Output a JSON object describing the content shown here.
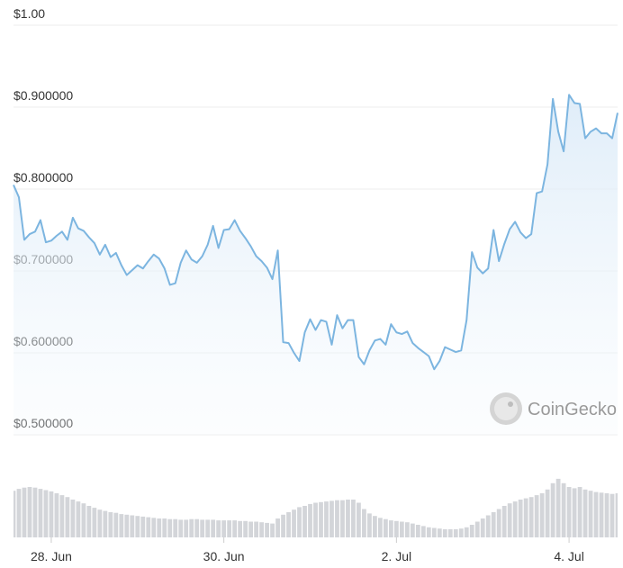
{
  "chart_data": {
    "type": "line",
    "watermark": "CoinGecko",
    "color": "#7cb5e0",
    "volume_color": "#d3d5d9",
    "grid": true,
    "ylim": [
      0.5,
      1.0
    ],
    "yticks": [
      {
        "value": 0.5,
        "label": "$0.500000"
      },
      {
        "value": 0.6,
        "label": "$0.600000"
      },
      {
        "value": 0.7,
        "label": "$0.700000"
      },
      {
        "value": 0.8,
        "label": "$0.800000"
      },
      {
        "value": 0.9,
        "label": "$0.900000"
      },
      {
        "value": 1.0,
        "label": "$1.00"
      }
    ],
    "categories": [
      null,
      null,
      null,
      null,
      null,
      null,
      null,
      "28. Jun",
      null,
      null,
      null,
      null,
      null,
      null,
      null,
      null,
      null,
      null,
      null,
      null,
      null,
      null,
      null,
      null,
      null,
      null,
      null,
      null,
      null,
      null,
      null,
      null,
      null,
      null,
      null,
      null,
      null,
      null,
      null,
      "30. Jun",
      null,
      null,
      null,
      null,
      null,
      null,
      null,
      null,
      null,
      null,
      null,
      null,
      null,
      null,
      null,
      null,
      null,
      null,
      null,
      null,
      null,
      null,
      null,
      null,
      null,
      null,
      null,
      null,
      null,
      null,
      null,
      "2. Jul",
      null,
      null,
      null,
      null,
      null,
      null,
      null,
      null,
      null,
      null,
      null,
      null,
      null,
      null,
      null,
      null,
      null,
      null,
      null,
      null,
      null,
      null,
      null,
      null,
      null,
      null,
      null,
      null,
      null,
      null,
      null,
      "4. Jul",
      null,
      null,
      null,
      null,
      null,
      null,
      null,
      null,
      null
    ],
    "values": [
      0.805,
      0.79,
      0.738,
      0.745,
      0.748,
      0.762,
      0.735,
      0.737,
      0.743,
      0.748,
      0.738,
      0.765,
      0.752,
      0.749,
      0.741,
      0.734,
      0.72,
      0.732,
      0.717,
      0.722,
      0.707,
      0.695,
      0.701,
      0.707,
      0.703,
      0.712,
      0.72,
      0.715,
      0.703,
      0.683,
      0.685,
      0.71,
      0.725,
      0.714,
      0.71,
      0.718,
      0.732,
      0.755,
      0.728,
      0.75,
      0.751,
      0.762,
      0.749,
      0.74,
      0.73,
      0.718,
      0.712,
      0.704,
      0.69,
      0.725,
      0.613,
      0.612,
      0.6,
      0.59,
      0.625,
      0.641,
      0.628,
      0.64,
      0.638,
      0.61,
      0.646,
      0.63,
      0.64,
      0.64,
      0.595,
      0.586,
      0.603,
      0.615,
      0.617,
      0.61,
      0.635,
      0.625,
      0.623,
      0.626,
      0.612,
      0.606,
      0.601,
      0.596,
      0.58,
      0.59,
      0.607,
      0.604,
      0.601,
      0.603,
      0.64,
      0.723,
      0.704,
      0.697,
      0.703,
      0.75,
      0.712,
      0.733,
      0.751,
      0.76,
      0.747,
      0.74,
      0.745,
      0.795,
      0.797,
      0.83,
      0.91,
      0.87,
      0.846,
      0.915,
      0.905,
      0.904,
      0.862,
      0.87,
      0.874,
      0.868,
      0.868,
      0.862,
      0.893
    ],
    "y2lim": [
      0,
      100
    ],
    "volume_values": [
      74,
      77,
      79,
      80,
      79,
      77,
      75,
      73,
      70,
      67,
      64,
      60,
      57,
      54,
      50,
      47,
      44,
      42,
      40,
      39,
      37,
      36,
      35,
      34,
      33,
      32,
      31,
      30,
      30,
      29,
      29,
      28,
      28,
      29,
      29,
      28,
      28,
      28,
      27,
      27,
      27,
      27,
      26,
      26,
      25,
      25,
      24,
      23,
      22,
      30,
      36,
      40,
      44,
      48,
      50,
      53,
      55,
      56,
      57,
      58,
      59,
      59,
      60,
      60,
      55,
      45,
      38,
      34,
      31,
      29,
      27,
      26,
      25,
      24,
      22,
      20,
      18,
      16,
      15,
      14,
      13,
      13,
      13,
      14,
      16,
      20,
      25,
      30,
      35,
      40,
      45,
      50,
      54,
      57,
      60,
      62,
      64,
      67,
      70,
      76,
      86,
      93,
      86,
      80,
      78,
      80,
      76,
      74,
      72,
      71,
      70,
      69,
      70
    ]
  }
}
